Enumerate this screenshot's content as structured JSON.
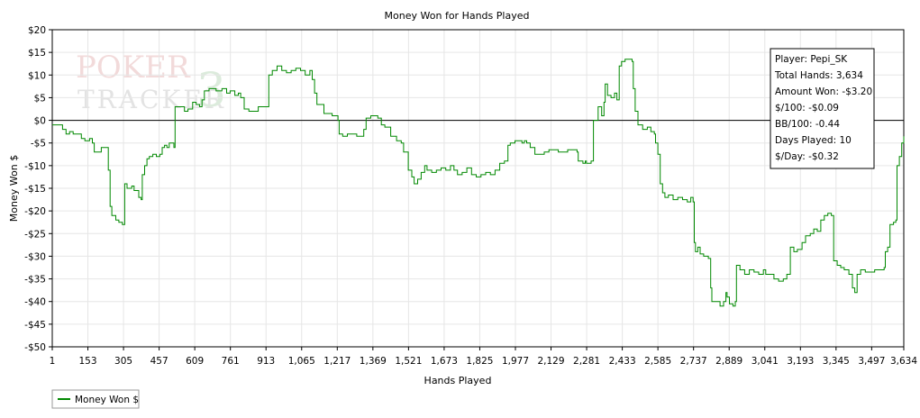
{
  "chart_data": {
    "type": "line",
    "title": "Money Won for Hands Played",
    "xlabel": "Hands Played",
    "ylabel": "Money Won $",
    "xlim": [
      1,
      3634
    ],
    "ylim": [
      -50,
      20
    ],
    "grid": true,
    "legend_position": "bottom-left",
    "x_tick_values": [
      1,
      153,
      305,
      457,
      609,
      761,
      913,
      1065,
      1217,
      1369,
      1521,
      1673,
      1825,
      1977,
      2129,
      2281,
      2433,
      2585,
      2737,
      2889,
      3041,
      3193,
      3345,
      3497,
      3634
    ],
    "x_tick_labels": [
      "1",
      "153",
      "305",
      "457",
      "609",
      "761",
      "913",
      "1,065",
      "1,217",
      "1,369",
      "1,521",
      "1,673",
      "1,825",
      "1,977",
      "2,129",
      "2,281",
      "2,433",
      "2,585",
      "2,737",
      "2,889",
      "3,041",
      "3,193",
      "3,345",
      "3,497",
      "3,634"
    ],
    "y_tick_values": [
      20,
      15,
      10,
      5,
      0,
      -5,
      -10,
      -15,
      -20,
      -25,
      -30,
      -35,
      -40,
      -45,
      -50
    ],
    "y_tick_labels": [
      "$20",
      "$15",
      "$10",
      "$5",
      "$0",
      "-$5",
      "-$10",
      "-$15",
      "-$20",
      "-$25",
      "-$30",
      "-$35",
      "-$40",
      "-$45",
      "-$50"
    ],
    "series": [
      {
        "name": "Money Won $",
        "color": "#008800",
        "points": [
          [
            1,
            -1
          ],
          [
            30,
            -1
          ],
          [
            45,
            -2
          ],
          [
            60,
            -3
          ],
          [
            75,
            -2.5
          ],
          [
            90,
            -3
          ],
          [
            110,
            -3
          ],
          [
            125,
            -4
          ],
          [
            140,
            -4.5
          ],
          [
            160,
            -4
          ],
          [
            172,
            -5
          ],
          [
            180,
            -7
          ],
          [
            210,
            -6
          ],
          [
            235,
            -6
          ],
          [
            240,
            -11
          ],
          [
            248,
            -19
          ],
          [
            255,
            -21
          ],
          [
            272,
            -22
          ],
          [
            285,
            -22.5
          ],
          [
            300,
            -23
          ],
          [
            310,
            -14
          ],
          [
            320,
            -15
          ],
          [
            340,
            -14.5
          ],
          [
            350,
            -15.5
          ],
          [
            370,
            -17
          ],
          [
            380,
            -17.5
          ],
          [
            385,
            -12
          ],
          [
            395,
            -10
          ],
          [
            405,
            -8.5
          ],
          [
            415,
            -8
          ],
          [
            430,
            -7.5
          ],
          [
            445,
            -8
          ],
          [
            460,
            -7.5
          ],
          [
            470,
            -6
          ],
          [
            480,
            -5.5
          ],
          [
            490,
            -6
          ],
          [
            500,
            -5
          ],
          [
            520,
            -6
          ],
          [
            525,
            3
          ],
          [
            545,
            3
          ],
          [
            565,
            2
          ],
          [
            580,
            2.5
          ],
          [
            600,
            4
          ],
          [
            615,
            3.5
          ],
          [
            630,
            3
          ],
          [
            640,
            4.5
          ],
          [
            650,
            6.5
          ],
          [
            670,
            7
          ],
          [
            700,
            6.5
          ],
          [
            725,
            7
          ],
          [
            745,
            6
          ],
          [
            760,
            6.5
          ],
          [
            780,
            5.5
          ],
          [
            795,
            6
          ],
          [
            805,
            5
          ],
          [
            820,
            2.5
          ],
          [
            840,
            2
          ],
          [
            860,
            2
          ],
          [
            880,
            3
          ],
          [
            920,
            3
          ],
          [
            925,
            10
          ],
          [
            940,
            11
          ],
          [
            960,
            12
          ],
          [
            980,
            11
          ],
          [
            1000,
            10.5
          ],
          [
            1020,
            11
          ],
          [
            1040,
            11.5
          ],
          [
            1060,
            11
          ],
          [
            1080,
            10
          ],
          [
            1100,
            11
          ],
          [
            1110,
            9
          ],
          [
            1120,
            6
          ],
          [
            1130,
            3.5
          ],
          [
            1160,
            1.5
          ],
          [
            1195,
            1
          ],
          [
            1220,
            0
          ],
          [
            1225,
            -3
          ],
          [
            1240,
            -3.5
          ],
          [
            1260,
            -3
          ],
          [
            1280,
            -3
          ],
          [
            1300,
            -3.5
          ],
          [
            1320,
            -3.5
          ],
          [
            1330,
            -2
          ],
          [
            1340,
            0.5
          ],
          [
            1360,
            1
          ],
          [
            1390,
            0.5
          ],
          [
            1405,
            -1
          ],
          [
            1420,
            -1.5
          ],
          [
            1445,
            -3.5
          ],
          [
            1470,
            -4.5
          ],
          [
            1490,
            -5
          ],
          [
            1500,
            -7
          ],
          [
            1520,
            -11
          ],
          [
            1535,
            -12.5
          ],
          [
            1545,
            -14
          ],
          [
            1560,
            -13
          ],
          [
            1575,
            -11.5
          ],
          [
            1590,
            -10
          ],
          [
            1600,
            -11
          ],
          [
            1620,
            -11.5
          ],
          [
            1640,
            -11
          ],
          [
            1660,
            -10.5
          ],
          [
            1680,
            -11
          ],
          [
            1700,
            -10
          ],
          [
            1715,
            -11
          ],
          [
            1730,
            -12
          ],
          [
            1750,
            -11.5
          ],
          [
            1770,
            -10.5
          ],
          [
            1790,
            -12
          ],
          [
            1810,
            -12.5
          ],
          [
            1830,
            -12
          ],
          [
            1850,
            -11.5
          ],
          [
            1870,
            -12
          ],
          [
            1890,
            -11
          ],
          [
            1910,
            -9.5
          ],
          [
            1930,
            -9
          ],
          [
            1945,
            -5.5
          ],
          [
            1955,
            -5
          ],
          [
            1975,
            -4.5
          ],
          [
            1990,
            -4.5
          ],
          [
            2005,
            -5
          ],
          [
            2015,
            -4.5
          ],
          [
            2025,
            -5
          ],
          [
            2040,
            -6
          ],
          [
            2060,
            -7.5
          ],
          [
            2080,
            -7.5
          ],
          [
            2100,
            -7
          ],
          [
            2120,
            -6.5
          ],
          [
            2140,
            -6.5
          ],
          [
            2160,
            -7
          ],
          [
            2180,
            -7
          ],
          [
            2200,
            -6.5
          ],
          [
            2220,
            -6.5
          ],
          [
            2240,
            -7
          ],
          [
            2245,
            -9
          ],
          [
            2265,
            -9.5
          ],
          [
            2275,
            -9
          ],
          [
            2280,
            -9.5
          ],
          [
            2300,
            -9
          ],
          [
            2310,
            0
          ],
          [
            2330,
            3
          ],
          [
            2345,
            1
          ],
          [
            2355,
            4
          ],
          [
            2360,
            8
          ],
          [
            2370,
            5.5
          ],
          [
            2385,
            5
          ],
          [
            2400,
            6
          ],
          [
            2410,
            4.5
          ],
          [
            2420,
            12
          ],
          [
            2430,
            13
          ],
          [
            2445,
            13.5
          ],
          [
            2460,
            13.5
          ],
          [
            2475,
            13
          ],
          [
            2480,
            7
          ],
          [
            2488,
            2
          ],
          [
            2500,
            -1
          ],
          [
            2520,
            -2
          ],
          [
            2540,
            -1.5
          ],
          [
            2555,
            -2.5
          ],
          [
            2570,
            -3
          ],
          [
            2575,
            -5
          ],
          [
            2585,
            -7.5
          ],
          [
            2595,
            -14
          ],
          [
            2605,
            -16
          ],
          [
            2615,
            -17
          ],
          [
            2630,
            -16.5
          ],
          [
            2650,
            -17.5
          ],
          [
            2670,
            -17
          ],
          [
            2690,
            -17.5
          ],
          [
            2710,
            -18
          ],
          [
            2725,
            -17
          ],
          [
            2735,
            -18
          ],
          [
            2740,
            -27
          ],
          [
            2745,
            -29
          ],
          [
            2755,
            -28
          ],
          [
            2765,
            -29.5
          ],
          [
            2780,
            -30
          ],
          [
            2800,
            -30.5
          ],
          [
            2810,
            -37
          ],
          [
            2815,
            -40
          ],
          [
            2830,
            -40
          ],
          [
            2850,
            -41
          ],
          [
            2865,
            -40
          ],
          [
            2875,
            -38
          ],
          [
            2880,
            -39
          ],
          [
            2890,
            -40.5
          ],
          [
            2905,
            -41
          ],
          [
            2915,
            -40
          ],
          [
            2920,
            -32
          ],
          [
            2935,
            -33
          ],
          [
            2955,
            -34
          ],
          [
            2975,
            -33
          ],
          [
            2995,
            -33.5
          ],
          [
            3015,
            -34
          ],
          [
            3035,
            -33
          ],
          [
            3045,
            -34
          ],
          [
            3060,
            -34
          ],
          [
            3080,
            -35
          ],
          [
            3100,
            -35.5
          ],
          [
            3120,
            -35
          ],
          [
            3135,
            -34
          ],
          [
            3150,
            -28
          ],
          [
            3165,
            -29
          ],
          [
            3180,
            -28.5
          ],
          [
            3200,
            -27
          ],
          [
            3215,
            -25.5
          ],
          [
            3235,
            -25
          ],
          [
            3250,
            -24
          ],
          [
            3265,
            -24.5
          ],
          [
            3280,
            -22
          ],
          [
            3295,
            -21
          ],
          [
            3310,
            -20.5
          ],
          [
            3325,
            -21
          ],
          [
            3335,
            -31
          ],
          [
            3350,
            -32
          ],
          [
            3365,
            -32.5
          ],
          [
            3380,
            -33
          ],
          [
            3400,
            -34
          ],
          [
            3415,
            -37
          ],
          [
            3425,
            -38
          ],
          [
            3435,
            -34
          ],
          [
            3450,
            -33
          ],
          [
            3470,
            -33.5
          ],
          [
            3490,
            -33.5
          ],
          [
            3510,
            -33
          ],
          [
            3530,
            -33
          ],
          [
            3550,
            -32.5
          ],
          [
            3555,
            -29
          ],
          [
            3565,
            -28
          ],
          [
            3575,
            -23
          ],
          [
            3590,
            -22.5
          ],
          [
            3600,
            -22
          ],
          [
            3605,
            -10
          ],
          [
            3615,
            -8
          ],
          [
            3625,
            -5
          ],
          [
            3634,
            -3.5
          ]
        ]
      }
    ],
    "stats_box": {
      "player": "Player: Pepi_SK",
      "total_hands": "Total Hands: 3,634",
      "amount_won": "Amount Won: -$3.20",
      "per_100": "$/100: -$0.09",
      "bb_per_100": "BB/100: -0.44",
      "days_played": "Days Played: 10",
      "per_day": "$/Day: -$0.32"
    },
    "watermark": {
      "line1": "POKER",
      "line2": "TRACKER",
      "version": "3"
    }
  }
}
